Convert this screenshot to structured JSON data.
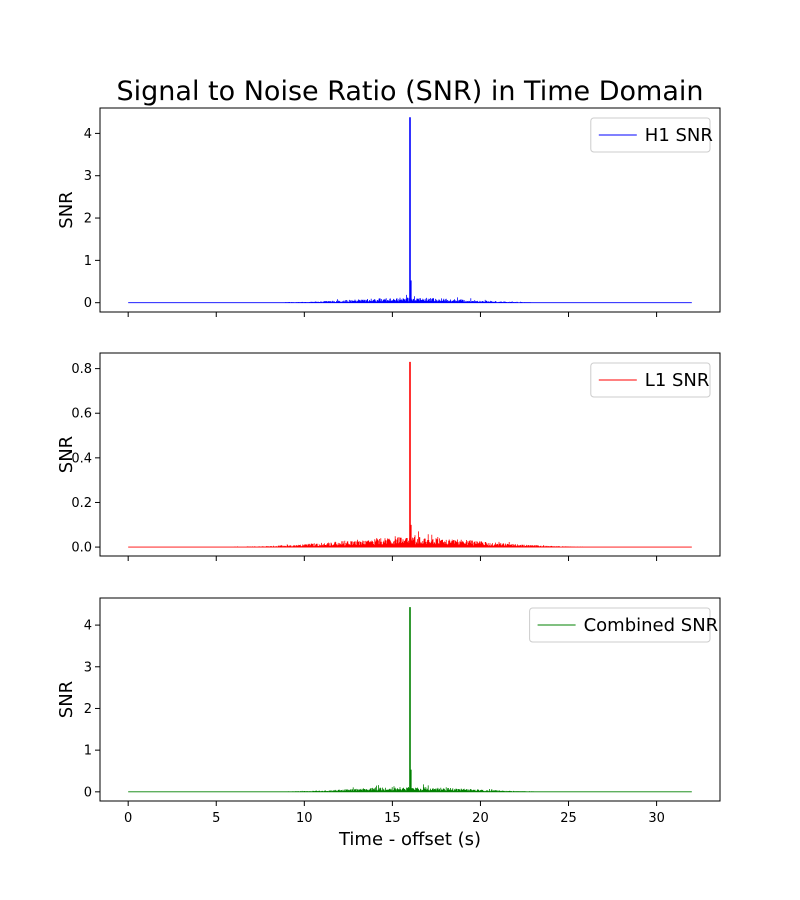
{
  "title": "Signal to Noise Ratio (SNR) in Time Domain",
  "xlabel": "Time - offset (s)",
  "chart_data": [
    {
      "type": "line",
      "ylabel": "SNR",
      "xlim": [
        -1.6,
        33.6
      ],
      "ylim": [
        -0.22,
        4.6
      ],
      "xticks": [
        0,
        5,
        10,
        15,
        20,
        25,
        30
      ],
      "yticks": [
        0,
        1,
        2,
        3,
        4
      ],
      "ytick_labels": [
        "0",
        "1",
        "2",
        "3",
        "4"
      ],
      "legend_position": "top-right",
      "series": [
        {
          "name": "H1 SNR",
          "color": "#0000ff",
          "peak": {
            "x": 16.0,
            "y": 4.38
          },
          "x_range": [
            0,
            32
          ],
          "noise_envelope": {
            "center": 16.0,
            "max": 0.12,
            "width": 4.5
          }
        }
      ]
    },
    {
      "type": "line",
      "ylabel": "SNR",
      "xlim": [
        -1.6,
        33.6
      ],
      "ylim": [
        -0.04,
        0.87
      ],
      "xticks": [
        0,
        5,
        10,
        15,
        20,
        25,
        30
      ],
      "yticks": [
        0.0,
        0.2,
        0.4,
        0.6,
        0.8
      ],
      "ytick_labels": [
        "0.0",
        "0.2",
        "0.4",
        "0.6",
        "0.8"
      ],
      "legend_position": "top-right",
      "series": [
        {
          "name": "L1 SNR",
          "color": "#ff0000",
          "peak": {
            "x": 16.0,
            "y": 0.83
          },
          "x_range": [
            0,
            32
          ],
          "noise_envelope": {
            "center": 16.0,
            "max": 0.045,
            "width": 5.5
          }
        }
      ]
    },
    {
      "type": "line",
      "ylabel": "SNR",
      "xlim": [
        -1.6,
        33.6
      ],
      "ylim": [
        -0.22,
        4.65
      ],
      "xticks": [
        0,
        5,
        10,
        15,
        20,
        25,
        30
      ],
      "yticks": [
        0,
        1,
        2,
        3,
        4
      ],
      "ytick_labels": [
        "0",
        "1",
        "2",
        "3",
        "4"
      ],
      "legend_position": "top-right",
      "series": [
        {
          "name": "Combined SNR",
          "color": "#008000",
          "peak": {
            "x": 16.0,
            "y": 4.43
          },
          "x_range": [
            0,
            32
          ],
          "noise_envelope": {
            "center": 16.0,
            "max": 0.12,
            "width": 4.5
          }
        }
      ]
    }
  ]
}
